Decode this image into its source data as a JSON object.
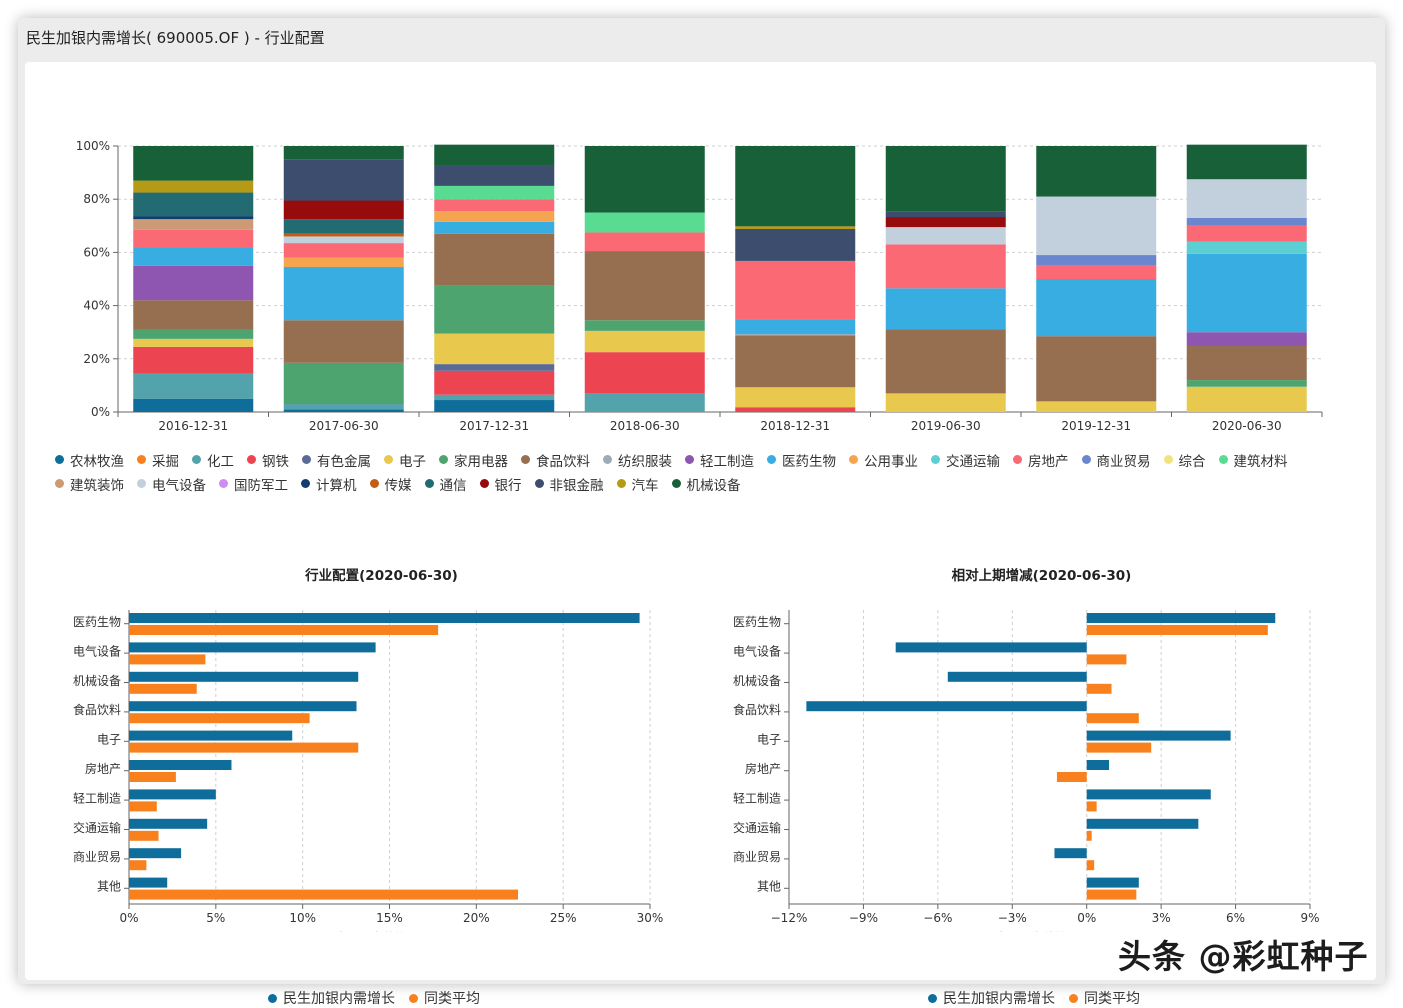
{
  "window": {
    "title": "民生加银内需增长( 690005.OF ) - 行业配置"
  },
  "chart_data": [
    {
      "type": "stacked-bar-100",
      "title": "",
      "categories": [
        "2016-12-31",
        "2017-06-30",
        "2017-12-31",
        "2018-06-30",
        "2018-12-31",
        "2019-06-30",
        "2019-12-31",
        "2020-06-30"
      ],
      "y_ticks": [
        "0%",
        "20%",
        "40%",
        "60%",
        "80%",
        "100%"
      ],
      "ylim": [
        0,
        100
      ],
      "series": [
        {
          "name": "农林牧渔",
          "color": "#0f6d9b",
          "values": [
            5,
            1,
            4.5,
            0,
            0,
            0,
            0,
            0
          ]
        },
        {
          "name": "采掘",
          "color": "#f8801d",
          "values": [
            0,
            0,
            0,
            0,
            0,
            0,
            0,
            0
          ]
        },
        {
          "name": "化工",
          "color": "#52a3ab",
          "values": [
            9.5,
            2,
            2,
            7,
            0,
            0,
            0,
            0
          ]
        },
        {
          "name": "钢铁",
          "color": "#ed4452",
          "values": [
            10,
            0,
            9,
            15.5,
            1.8,
            0,
            0,
            0
          ]
        },
        {
          "name": "有色金属",
          "color": "#586a95",
          "values": [
            0,
            0,
            2.5,
            0,
            0,
            0,
            0,
            0
          ]
        },
        {
          "name": "电子",
          "color": "#e8c94e",
          "values": [
            3,
            0,
            11.5,
            8,
            7.5,
            7,
            4,
            9.5
          ]
        },
        {
          "name": "家用电器",
          "color": "#4da46e",
          "values": [
            3.5,
            15.5,
            18,
            4,
            0,
            0,
            0,
            2.5
          ]
        },
        {
          "name": "食品饮料",
          "color": "#966e50",
          "values": [
            11,
            16,
            19.5,
            26,
            19.5,
            24,
            24.5,
            13
          ]
        },
        {
          "name": "纺织服装",
          "color": "#9daab7",
          "values": [
            0,
            0,
            0,
            0,
            0.5,
            0,
            0,
            0
          ]
        },
        {
          "name": "轻工制造",
          "color": "#8e55b1",
          "values": [
            13,
            0,
            0,
            0,
            0,
            0,
            0,
            5
          ]
        },
        {
          "name": "医药生物",
          "color": "#38ade1",
          "values": [
            7,
            20,
            4.5,
            0,
            5.5,
            15.5,
            21.5,
            29.5
          ]
        },
        {
          "name": "公用事业",
          "color": "#f5a54f",
          "values": [
            0,
            3.5,
            4,
            0,
            0,
            0,
            0,
            0
          ]
        },
        {
          "name": "交通运输",
          "color": "#5ccfd2",
          "values": [
            0,
            0,
            0,
            0,
            0,
            0,
            0,
            4.5
          ]
        },
        {
          "name": "房地产",
          "color": "#fa6974",
          "values": [
            6.5,
            5.5,
            4.5,
            7,
            22,
            16.5,
            5,
            6
          ]
        },
        {
          "name": "商业贸易",
          "color": "#6a86ce",
          "values": [
            0,
            0,
            0,
            0,
            0,
            0,
            4,
            3
          ]
        },
        {
          "name": "综合",
          "color": "#f2e37d",
          "values": [
            0,
            0,
            0,
            0,
            0,
            0,
            0,
            0
          ]
        },
        {
          "name": "建筑材料",
          "color": "#5adb92",
          "values": [
            0,
            0,
            5,
            7.5,
            0,
            0,
            0,
            0
          ]
        },
        {
          "name": "建筑装饰",
          "color": "#cc9a74",
          "values": [
            4,
            0,
            0,
            0,
            0,
            0,
            0,
            0
          ]
        },
        {
          "name": "电气设备",
          "color": "#c2d0dd",
          "values": [
            0,
            2.5,
            0,
            0,
            0,
            6.5,
            22,
            14.5
          ]
        },
        {
          "name": "国防军工",
          "color": "#d08cf0",
          "values": [
            0,
            0,
            0,
            0,
            0,
            0,
            0,
            0
          ]
        },
        {
          "name": "计算机",
          "color": "#123c6f",
          "values": [
            1,
            0,
            0,
            0,
            0,
            0,
            0,
            0
          ]
        },
        {
          "name": "传媒",
          "color": "#c35d15",
          "values": [
            0,
            1,
            0,
            0,
            0,
            0,
            0,
            0
          ]
        },
        {
          "name": "通信",
          "color": "#236b72",
          "values": [
            9,
            5.5,
            0,
            0,
            0,
            0,
            0,
            0
          ]
        },
        {
          "name": "银行",
          "color": "#960c0c",
          "values": [
            0,
            7,
            0,
            0,
            0,
            3.8,
            0,
            0
          ]
        },
        {
          "name": "非银金融",
          "color": "#3c4d6d",
          "values": [
            0,
            15.5,
            7.5,
            0,
            12,
            2,
            0,
            0
          ]
        },
        {
          "name": "汽车",
          "color": "#b59a15",
          "values": [
            4.5,
            0,
            0,
            0,
            1,
            0,
            0,
            0
          ]
        },
        {
          "name": "机械设备",
          "color": "#186138",
          "values": [
            13,
            5,
            8,
            25,
            30.2,
            24.7,
            19,
            13
          ]
        }
      ]
    },
    {
      "type": "bar",
      "orientation": "horizontal",
      "title": "行业配置(2020-06-30)",
      "xlabel": "占股票市值比(%)",
      "categories": [
        "医药生物",
        "电气设备",
        "机械设备",
        "食品饮料",
        "电子",
        "房地产",
        "轻工制造",
        "交通运输",
        "商业贸易",
        "其他"
      ],
      "x_ticks": [
        0,
        5,
        10,
        15,
        20,
        25,
        30
      ],
      "x_tick_labels": [
        "0%",
        "5%",
        "10%",
        "15%",
        "20%",
        "25%",
        "30%"
      ],
      "xlim": [
        0,
        30
      ],
      "series": [
        {
          "name": "民生加银内需增长",
          "color": "#0f6d9b",
          "values": [
            29.4,
            14.2,
            13.2,
            13.1,
            9.4,
            5.9,
            5.0,
            4.5,
            3.0,
            2.2
          ]
        },
        {
          "name": "同类平均",
          "color": "#f8801d",
          "values": [
            17.8,
            4.4,
            3.9,
            10.4,
            13.2,
            2.7,
            1.6,
            1.7,
            1.0,
            22.4
          ]
        }
      ]
    },
    {
      "type": "bar",
      "orientation": "horizontal",
      "title": "相对上期增减(2020-06-30)",
      "xlabel": "占股票市值比(%)",
      "categories": [
        "医药生物",
        "电气设备",
        "机械设备",
        "食品饮料",
        "电子",
        "房地产",
        "轻工制造",
        "交通运输",
        "商业贸易",
        "其他"
      ],
      "x_ticks": [
        -12,
        -9,
        -6,
        -3,
        0,
        3,
        6,
        9
      ],
      "x_tick_labels": [
        "−12%",
        "−9%",
        "−6%",
        "−3%",
        "0%",
        "3%",
        "6%",
        "9%"
      ],
      "xlim": [
        -12,
        9
      ],
      "series": [
        {
          "name": "民生加银内需增长",
          "color": "#0f6d9b",
          "values": [
            7.6,
            -7.7,
            -5.6,
            -11.3,
            5.8,
            0.9,
            5.0,
            4.5,
            -1.3,
            2.1
          ]
        },
        {
          "name": "同类平均",
          "color": "#f8801d",
          "values": [
            7.3,
            1.6,
            1.0,
            2.1,
            2.6,
            -1.2,
            0.4,
            0.2,
            0.3,
            2.0
          ]
        }
      ]
    }
  ],
  "bar_legend": {
    "series1": "民生加银内需增长",
    "series2": "同类平均"
  },
  "watermark": "头条 @彩虹种子"
}
